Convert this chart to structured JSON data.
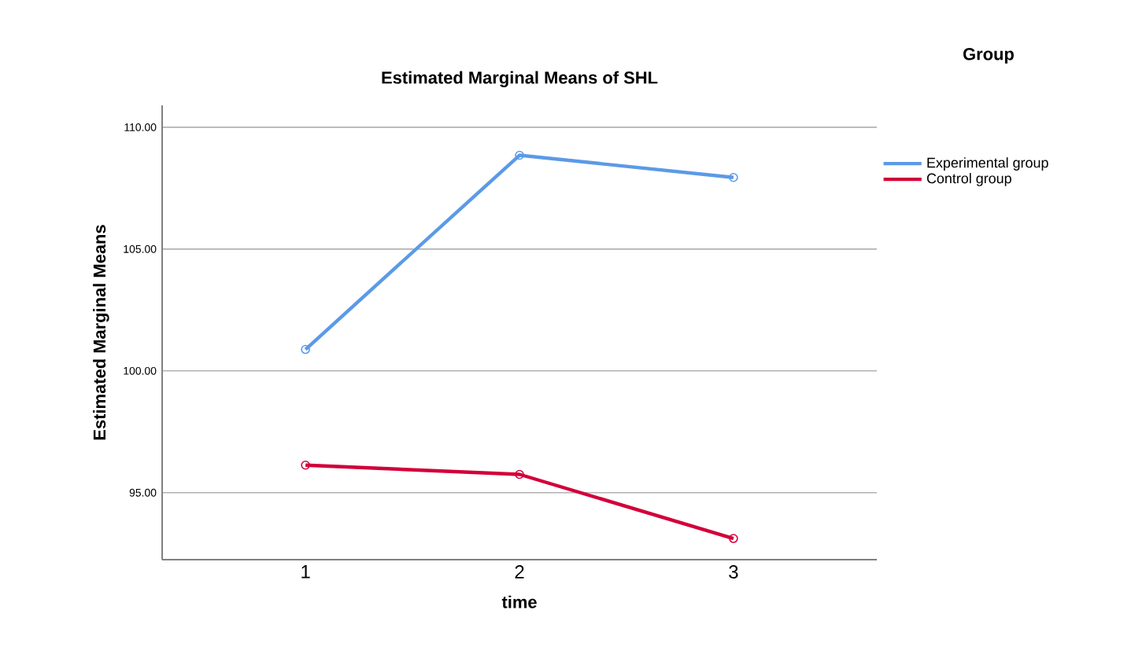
{
  "chart_data": {
    "type": "line",
    "title": "Estimated Marginal Means of SHL",
    "xlabel": "time",
    "ylabel": "Estimated Marginal Means",
    "legend_title": "Group",
    "categories": [
      "1",
      "2",
      "3"
    ],
    "series": [
      {
        "name": "Experimental group",
        "color": "#5b9ae6",
        "values": [
          100.88,
          108.85,
          107.94
        ]
      },
      {
        "name": "Control group",
        "color": "#d2003a",
        "values": [
          96.13,
          95.75,
          93.12
        ]
      }
    ],
    "ylim": [
      92.25,
      110.9
    ],
    "yticks": [
      {
        "value": 95,
        "label": "95.00"
      },
      {
        "value": 100,
        "label": "100.00"
      },
      {
        "value": 105,
        "label": "105.00"
      },
      {
        "value": 110,
        "label": "110.00"
      }
    ],
    "grid": "y",
    "legend": "right",
    "marker": "circle",
    "line_style": "solid"
  }
}
